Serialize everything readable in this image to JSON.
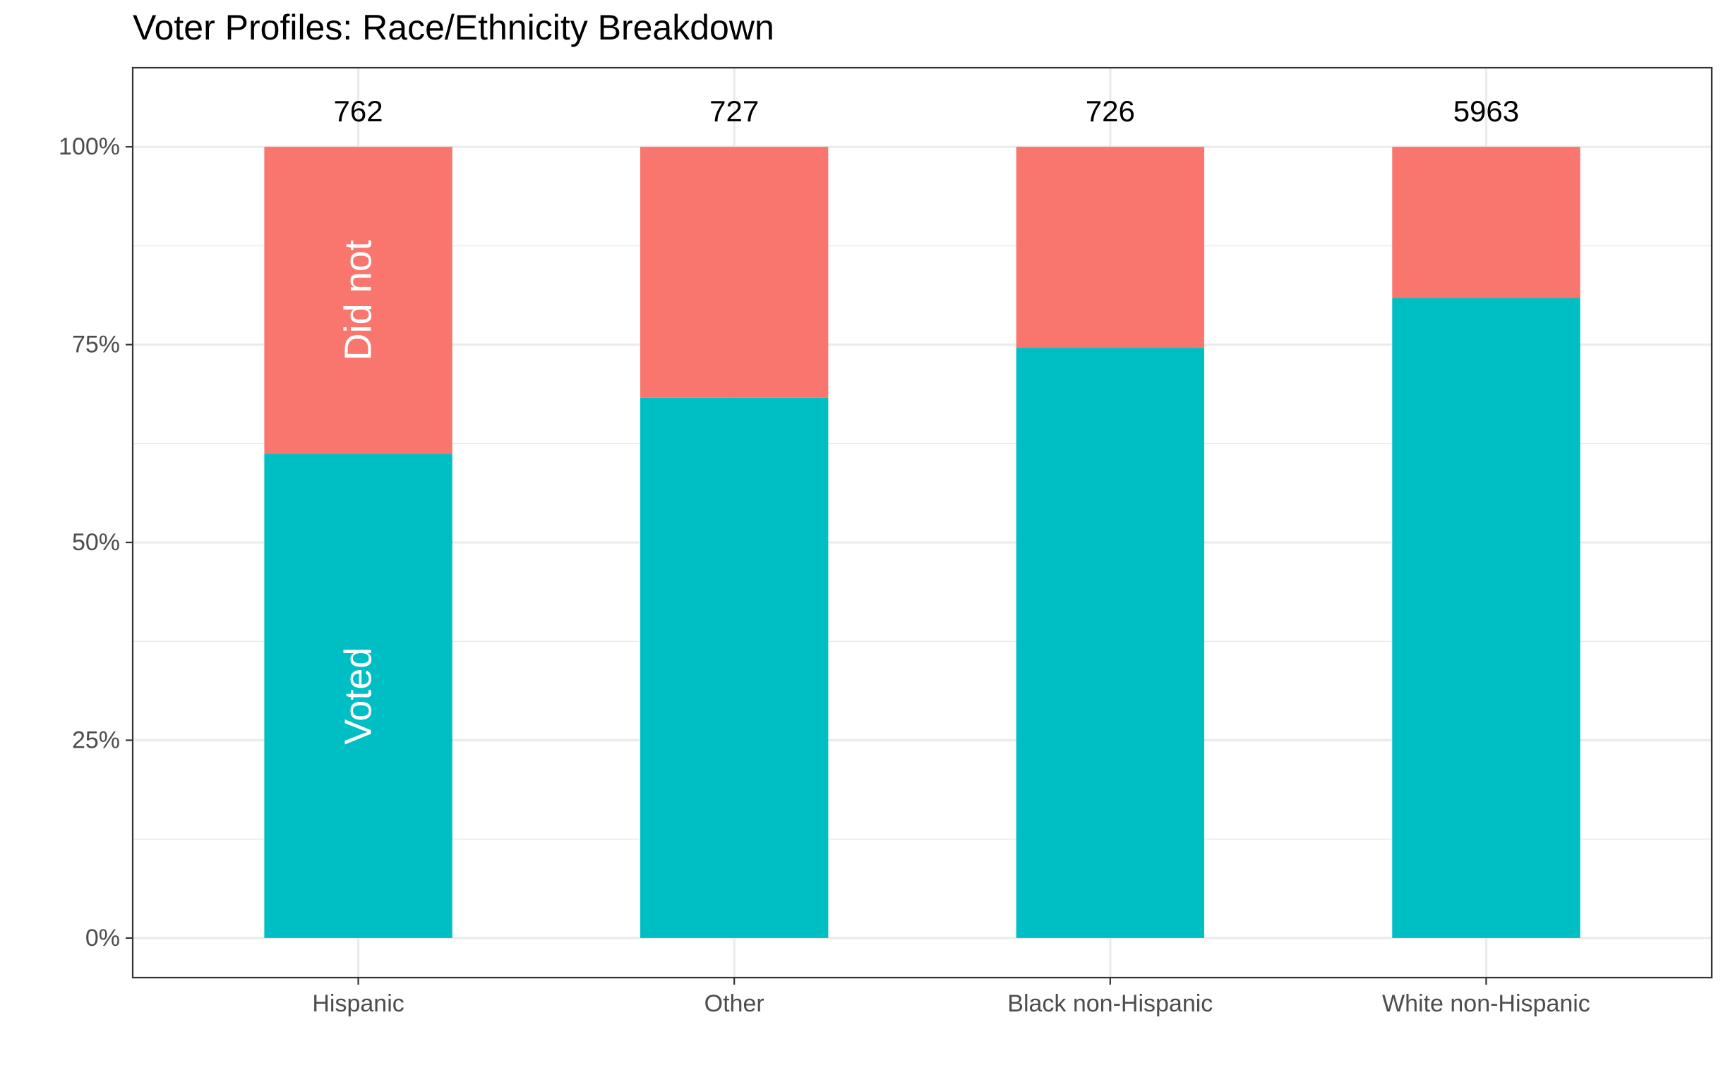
{
  "chart_data": {
    "type": "bar",
    "stacked": true,
    "title": "Voter Profiles: Race/Ethnicity Breakdown",
    "xlabel": "",
    "ylabel": "",
    "categories": [
      "Hispanic",
      "Other",
      "Black non-Hispanic",
      "White non-Hispanic"
    ],
    "counts": [
      "762",
      "727",
      "726",
      "5963"
    ],
    "series": [
      {
        "name": "Voted",
        "values": [
          0.612,
          0.683,
          0.746,
          0.809
        ],
        "color": "#00BFC4"
      },
      {
        "name": "Did not",
        "values": [
          0.388,
          0.317,
          0.254,
          0.191
        ],
        "color": "#F8766D"
      }
    ],
    "segment_labels": {
      "voted": "Voted",
      "did_not": "Did not"
    },
    "ylim": [
      -0.05,
      1.1
    ],
    "yticks": [
      {
        "value": 0,
        "label": "0%"
      },
      {
        "value": 0.25,
        "label": "25%"
      },
      {
        "value": 0.5,
        "label": "50%"
      },
      {
        "value": 0.75,
        "label": "75%"
      },
      {
        "value": 1.0,
        "label": "100%"
      }
    ],
    "grid": true,
    "legend": "none",
    "theme": "bw"
  }
}
